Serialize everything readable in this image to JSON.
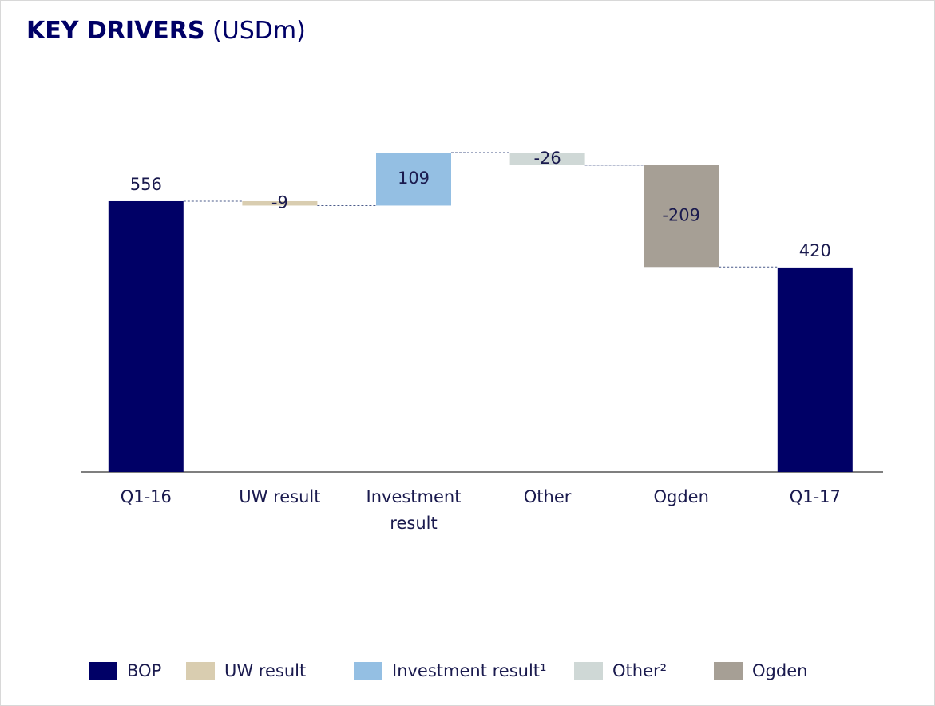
{
  "chart_data": {
    "type": "waterfall",
    "title": "KEY DRIVERS",
    "title_unit": "(USDm)",
    "categories": [
      "Q1-16",
      "UW result",
      "Investment result",
      "Other",
      "Ogden",
      "Q1-17"
    ],
    "values": [
      556,
      -9,
      109,
      -26,
      -209,
      420
    ],
    "colors": [
      "#000066",
      "#d9cdb0",
      "#94bfe3",
      "#cfd8d6",
      "#a69f95",
      "#000066"
    ],
    "legend": [
      {
        "name": "BOP",
        "color": "#000066"
      },
      {
        "name": "UW result",
        "color": "#d9cdb0"
      },
      {
        "name": "Investment result¹",
        "color": "#94bfe3"
      },
      {
        "name": "Other²",
        "color": "#cfd8d6"
      },
      {
        "name": "Ogden",
        "color": "#a69f95"
      }
    ]
  }
}
